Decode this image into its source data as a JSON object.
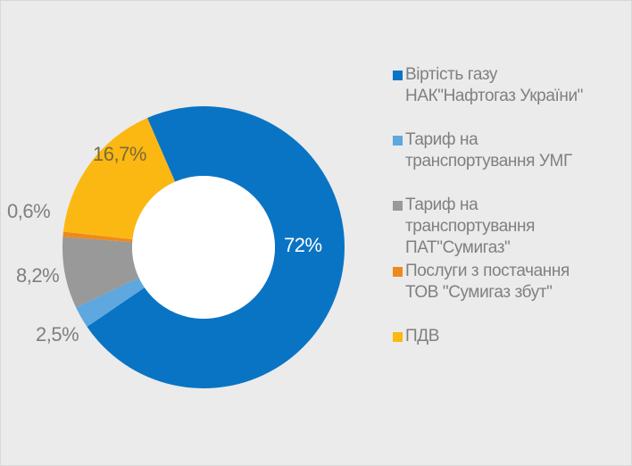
{
  "chart_data": {
    "type": "pie",
    "variant": "donut",
    "title": "",
    "start_angle_deg": -23.5,
    "direction": "clockwise",
    "slices": [
      {
        "label": "Віртість газу НАК\"Нафтогаз України\"",
        "value": 72.0,
        "display": "72%",
        "color": "#0a74c4"
      },
      {
        "label": "Тариф на транспортування УМГ",
        "value": 2.5,
        "display": "2,5%",
        "color": "#5ea7df"
      },
      {
        "label": "Тариф на транспортування ПАТ\"Сумигаз\"",
        "value": 8.2,
        "display": "8,2%",
        "color": "#999999"
      },
      {
        "label": "Послуги з постачання ТОВ \"Сумигаз збут\"",
        "value": 0.6,
        "display": "0,6%",
        "color": "#ee8a1c"
      },
      {
        "label": "ПДВ",
        "value": 16.7,
        "display": "16,7%",
        "color": "#fbb812"
      }
    ],
    "legend_position": "right"
  },
  "legend": {
    "items": [
      {
        "lines": [
          "Віртість газу",
          "НАК\"Нафтогаз України\""
        ],
        "color": "#0a74c4"
      },
      {
        "lines": [
          "Тариф на",
          "транспортування УМГ"
        ],
        "color": "#5ea7df"
      },
      {
        "lines": [
          "Тариф на",
          "транспортування",
          "ПАТ\"Сумигаз\""
        ],
        "color": "#999999"
      },
      {
        "lines": [
          "Послуги з постачання",
          "ТОВ \"Сумигаз збут\""
        ],
        "color": "#ee8a1c"
      },
      {
        "lines": [
          "ПДВ"
        ],
        "color": "#fbb812"
      }
    ]
  },
  "labels": {
    "blue": "72%",
    "light_blue": "2,5%",
    "gray": "8,2%",
    "orange": "0,6%",
    "yellow": "16,7%"
  }
}
